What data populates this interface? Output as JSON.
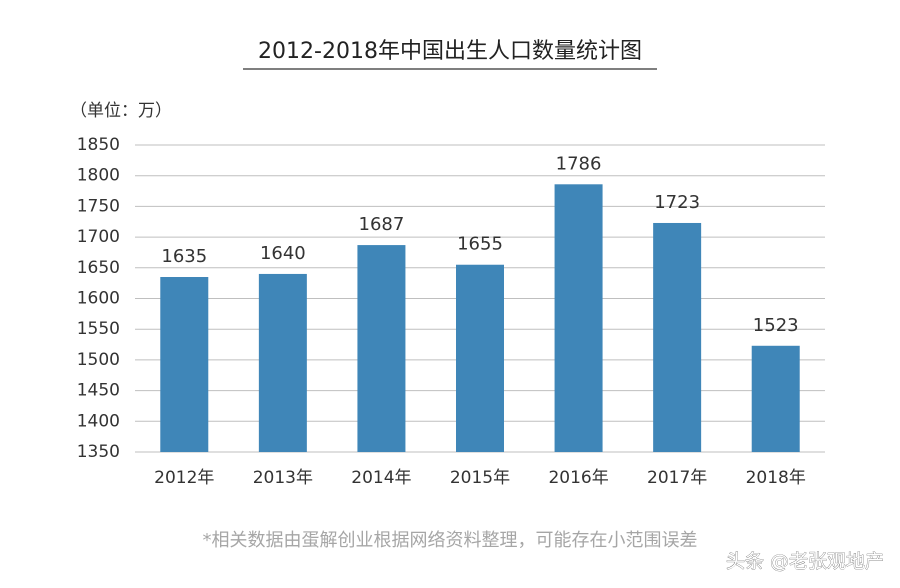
{
  "chart_data": {
    "type": "bar",
    "title": "2012-2018年中国出生人口数量统计图",
    "unit_label": "（单位：万）",
    "categories": [
      "2012年",
      "2013年",
      "2014年",
      "2015年",
      "2016年",
      "2017年",
      "2018年"
    ],
    "values": [
      1635,
      1640,
      1687,
      1655,
      1786,
      1723,
      1523
    ],
    "color": "#3f86b8",
    "ylim": [
      1350,
      1850
    ],
    "yticks": [
      1350,
      1400,
      1450,
      1500,
      1550,
      1600,
      1650,
      1700,
      1750,
      1800,
      1850
    ],
    "grid": true,
    "footnote": "*相关数据由蛋解创业根据网络资料整理，可能存在小范围误差",
    "watermark": "头条 @老张观地产"
  }
}
